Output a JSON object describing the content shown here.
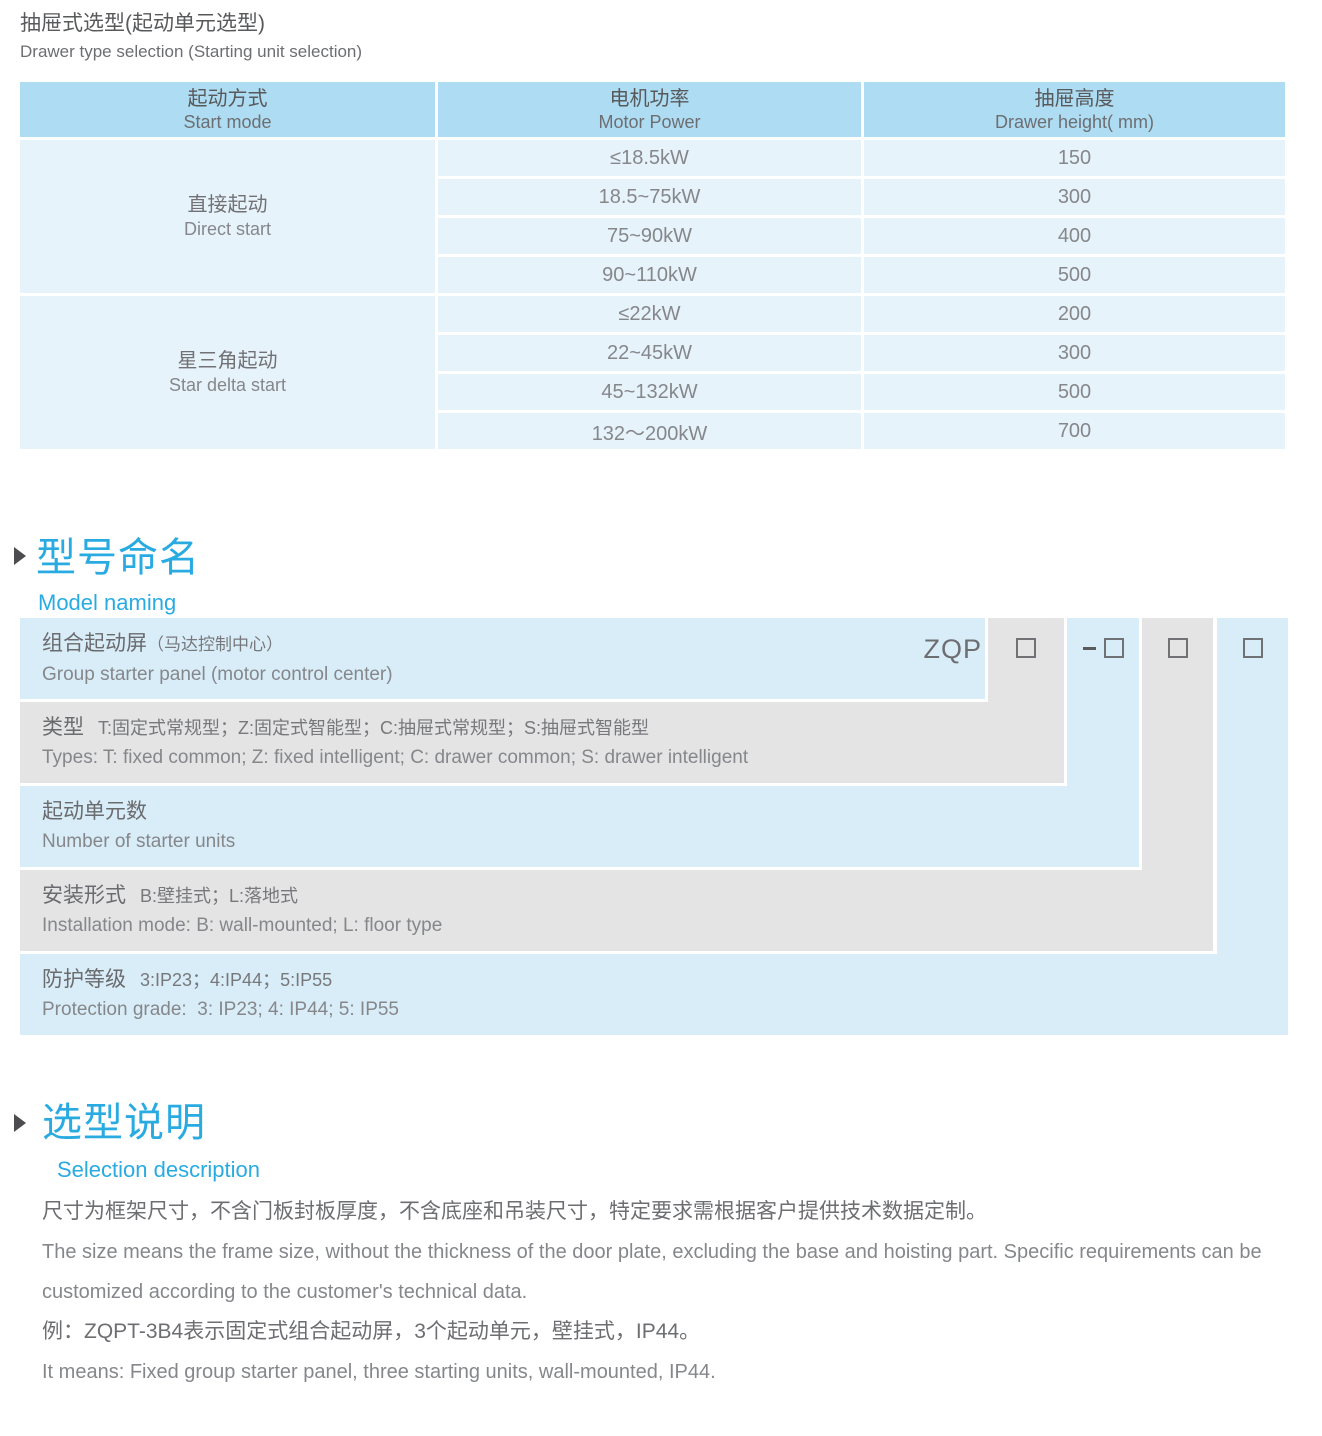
{
  "page": {
    "title_zh": "抽屉式选型(起动单元选型)",
    "title_en": "Drawer type selection (Starting unit selection)"
  },
  "selection_table": {
    "columns": [
      {
        "zh": "起动方式",
        "en": "Start mode"
      },
      {
        "zh": "电机功率",
        "en": "Motor Power"
      },
      {
        "zh": "抽屉高度",
        "en": "Drawer height( mm)"
      }
    ],
    "groups": [
      {
        "mode_zh": "直接起动",
        "mode_en": "Direct start",
        "rows": [
          {
            "power": "≤18.5kW",
            "height": "150"
          },
          {
            "power": "18.5~75kW",
            "height": "300"
          },
          {
            "power": "75~90kW",
            "height": "400"
          },
          {
            "power": "90~110kW",
            "height": "500"
          }
        ]
      },
      {
        "mode_zh": "星三角起动",
        "mode_en": "Star delta start",
        "rows": [
          {
            "power": "≤22kW",
            "height": "200"
          },
          {
            "power": "22~45kW",
            "height": "300"
          },
          {
            "power": "45~132kW",
            "height": "500"
          },
          {
            "power": "132～200kW",
            "height": "700"
          }
        ]
      }
    ]
  },
  "model_naming": {
    "heading_zh": "型号命名",
    "heading_en": "Model naming",
    "code_prefix": "ZQP",
    "rows": [
      {
        "zh": "组合起动屏",
        "zh_sub": "（马达控制中心）",
        "zh_detail": "",
        "en": "Group starter panel (motor control center)"
      },
      {
        "zh": "类型",
        "zh_sub": "",
        "zh_detail": "T:固定式常规型；Z:固定式智能型；C:抽屉式常规型；S:抽屉式智能型",
        "en": "Types: T: fixed common; Z: fixed intelligent; C: drawer common; S: drawer intelligent"
      },
      {
        "zh": "起动单元数",
        "zh_sub": "",
        "zh_detail": "",
        "en": "Number of starter units"
      },
      {
        "zh": "安装形式",
        "zh_sub": "",
        "zh_detail": "B:壁挂式；L:落地式",
        "en": "Installation mode: B: wall-mounted; L: floor type"
      },
      {
        "zh": "防护等级",
        "zh_sub": "",
        "zh_detail": "3:IP23；4:IP44；5:IP55",
        "en": "Protection grade:  3: IP23; 4: IP44; 5: IP55"
      }
    ]
  },
  "selection_description": {
    "heading_zh": "选型说明",
    "heading_en": "Selection description",
    "lines": [
      {
        "lang": "zh",
        "text": "尺寸为框架尺寸，不含门板封板厚度，不含底座和吊装尺寸，特定要求需根据客户提供技术数据定制。"
      },
      {
        "lang": "en",
        "text": "The size means the frame size, without the thickness of the door plate, excluding the base and hoisting part. Specific requirements can be customized according to the customer's technical data."
      },
      {
        "lang": "zh",
        "text": "例：ZQPT-3B4表示固定式组合起动屏，3个起动单元，壁挂式，IP44。"
      },
      {
        "lang": "en",
        "text": "It means: Fixed group starter panel, three starting units, wall-mounted, IP44."
      }
    ]
  },
  "colors": {
    "accent_blue": "#29abe2",
    "table_header_bg": "#aedcf2",
    "table_cell_bg": "#e7f3fb",
    "naming_blue_bg": "#d9edf8",
    "naming_gray_bg": "#e4e4e5",
    "text_dark": "#58595b",
    "text_mid": "#6d6e71",
    "text_light": "#85878b"
  }
}
